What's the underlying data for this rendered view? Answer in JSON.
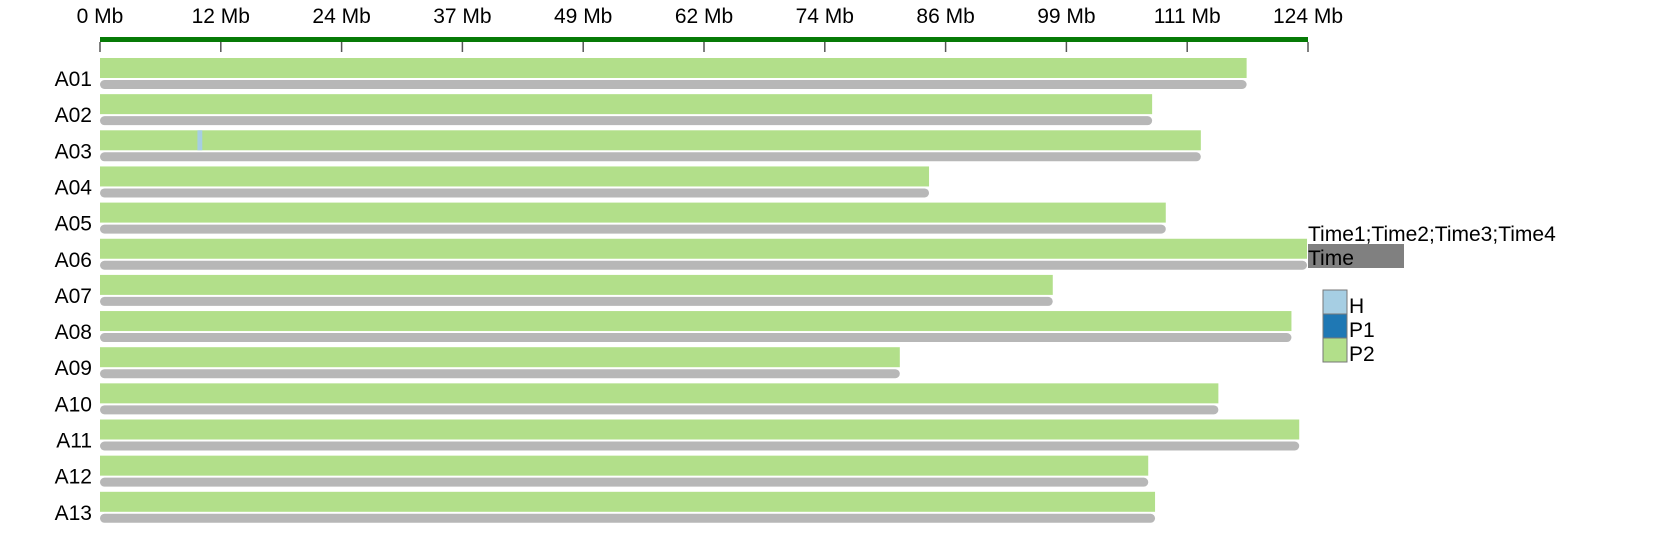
{
  "chart_data": {
    "type": "bar",
    "axis": {
      "unit": "Mb",
      "ticks": [
        "0 Mb",
        "12 Mb",
        "24 Mb",
        "37 Mb",
        "49 Mb",
        "62 Mb",
        "74 Mb",
        "86 Mb",
        "99 Mb",
        "111 Mb",
        "124 Mb"
      ],
      "xlim": [
        0,
        124
      ]
    },
    "categories": [
      "A01",
      "A02",
      "A03",
      "A04",
      "A05",
      "A06",
      "A07",
      "A08",
      "A09",
      "A10",
      "A11",
      "A12",
      "A13"
    ],
    "lengths_mb": [
      117.7,
      108.0,
      113.0,
      85.1,
      109.4,
      123.9,
      97.8,
      122.3,
      82.1,
      114.8,
      123.1,
      107.6,
      108.3
    ],
    "genotype_segments": [
      {
        "chromosome": "A03",
        "start_mb": 10.0,
        "end_mb": 10.5,
        "genotype": "H"
      }
    ],
    "background_genotype": "P2",
    "legend": {
      "title": "Time1;Time2;Time3;Time4",
      "track_label": "Time",
      "entries": [
        {
          "label": "H",
          "color": "#a6cee3"
        },
        {
          "label": "P1",
          "color": "#1f78b4"
        },
        {
          "label": "P2",
          "color": "#b2df8a"
        }
      ]
    },
    "colors": {
      "axis": "#067a06",
      "track": "#b7b7b7",
      "legend_track": "#808080"
    }
  }
}
